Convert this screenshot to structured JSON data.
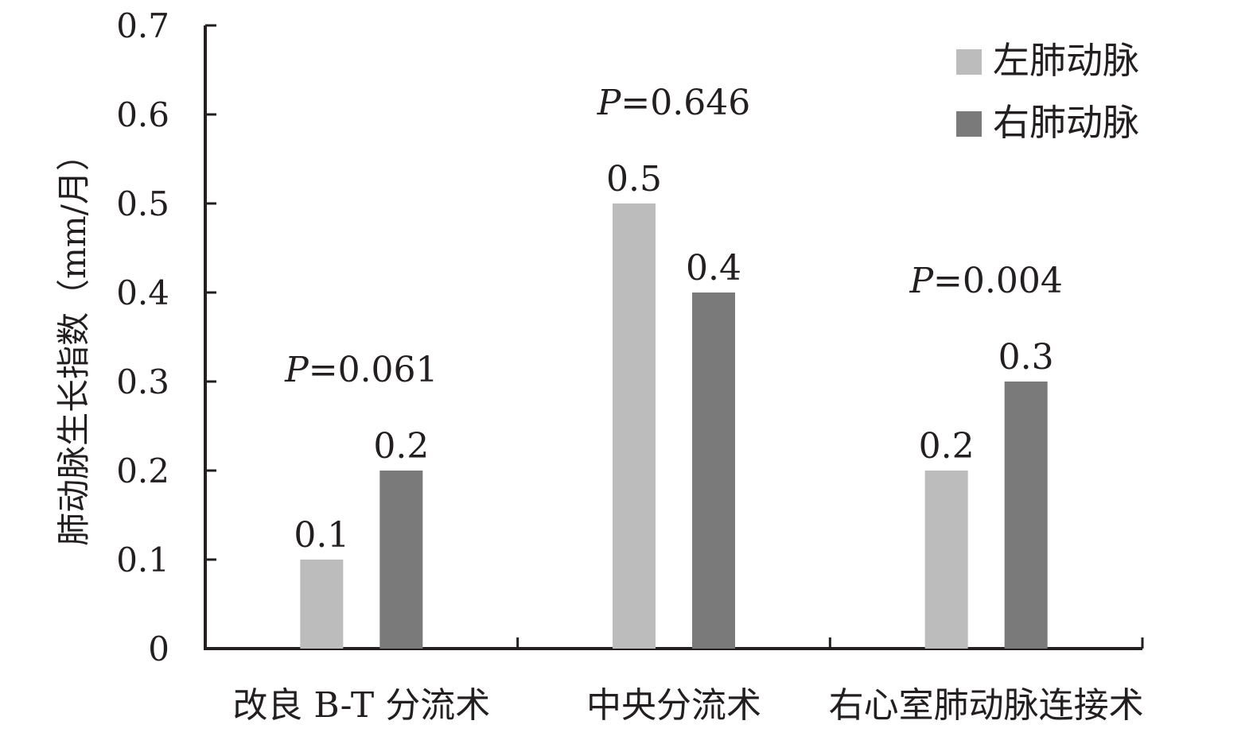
{
  "chart_data": {
    "type": "bar",
    "ylabel": "肺动脉生长指数（mm/月）",
    "ylim": [
      0,
      0.7
    ],
    "yticks": [
      {
        "value": 0,
        "label": "0"
      },
      {
        "value": 0.1,
        "label": "0.1"
      },
      {
        "value": 0.2,
        "label": "0.2"
      },
      {
        "value": 0.3,
        "label": "0.3"
      },
      {
        "value": 0.4,
        "label": "0.4"
      },
      {
        "value": 0.5,
        "label": "0.5"
      },
      {
        "value": 0.6,
        "label": "0.6"
      },
      {
        "value": 0.7,
        "label": "0.7"
      }
    ],
    "categories": [
      "改良 B-T 分流术",
      "中央分流术",
      "右心室肺动脉连接术"
    ],
    "series": [
      {
        "name": "左肺动脉",
        "color": "#bcbcbc",
        "values": [
          0.1,
          0.5,
          0.2
        ],
        "labels": [
          "0.1",
          "0.5",
          "0.2"
        ]
      },
      {
        "name": "右肺动脉",
        "color": "#7a7a7a",
        "values": [
          0.2,
          0.4,
          0.3
        ],
        "labels": [
          "0.2",
          "0.4",
          "0.3"
        ]
      }
    ],
    "annotations": [
      {
        "category": "改良 B-T 分流术",
        "p_symbol": "P",
        "p_value_text": "=0.061"
      },
      {
        "category": "中央分流术",
        "p_symbol": "P",
        "p_value_text": "=0.646"
      },
      {
        "category": "右心室肺动脉连接术",
        "p_symbol": "P",
        "p_value_text": "=0.004"
      }
    ],
    "legend_position": "top-right",
    "grid": false
  }
}
